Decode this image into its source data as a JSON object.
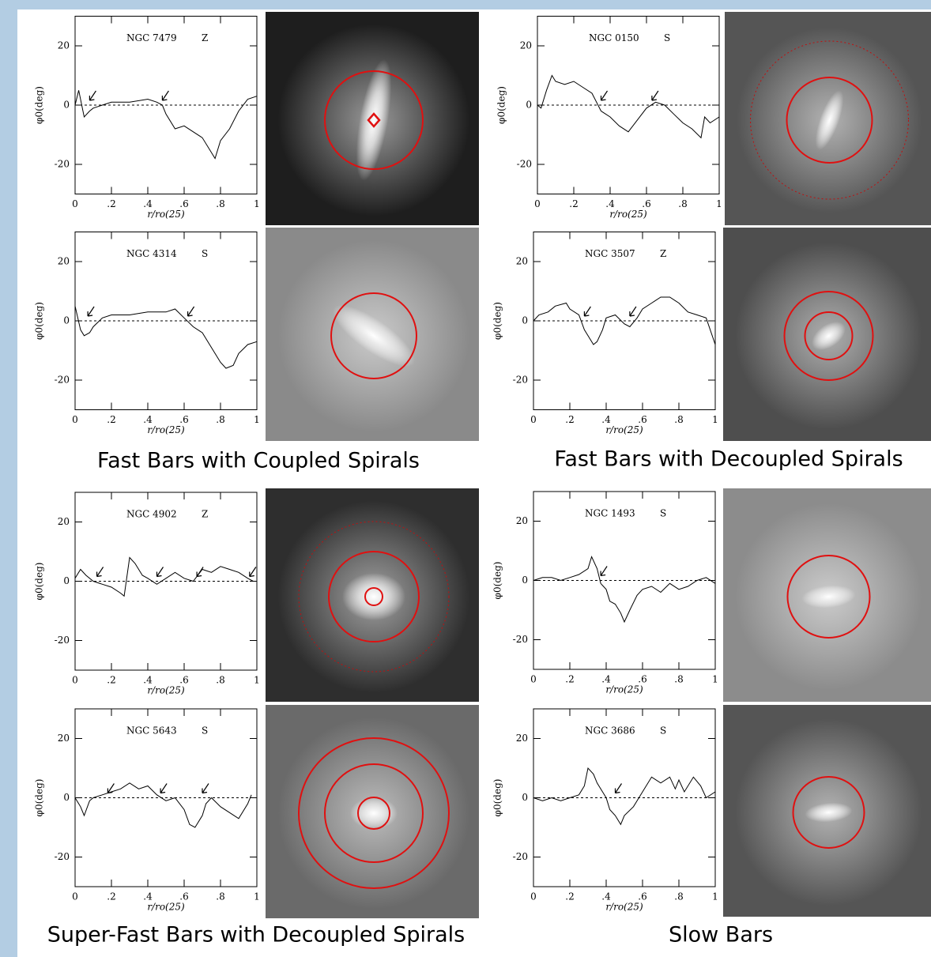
{
  "chart_data": [
    {
      "type": "line",
      "title": "NGC 7479",
      "annotation": "Z",
      "xlabel": "r/ro(25)",
      "ylabel": "φ0(deg)",
      "color": "#000000",
      "x": [
        0,
        0.02,
        0.05,
        0.08,
        0.1,
        0.15,
        0.2,
        0.3,
        0.4,
        0.45,
        0.48,
        0.5,
        0.55,
        0.6,
        0.65,
        0.7,
        0.75,
        0.77,
        0.8,
        0.85,
        0.9,
        0.95,
        1.0
      ],
      "values": [
        0,
        5,
        -4,
        -2,
        -1,
        0,
        1,
        1,
        2,
        1,
        0,
        -3,
        -8,
        -7,
        -9,
        -11,
        -16,
        -18,
        -12,
        -8,
        -2,
        2,
        3
      ],
      "arrows": [
        0.08,
        0.48
      ],
      "xlim": [
        0,
        1
      ],
      "ylim": [
        -30,
        30
      ],
      "xticks": [
        0,
        {
          "value": 0.2,
          "label": ".2"
        },
        {
          "value": 0.4,
          "label": ".4"
        },
        {
          "value": 0.6,
          "label": ".6"
        },
        {
          "value": 0.8,
          "label": ".8"
        },
        1
      ],
      "yticks": [
        -20,
        0,
        20
      ]
    },
    {
      "type": "line",
      "title": "NGC 0150",
      "annotation": "S",
      "xlabel": "r/ro(25)",
      "ylabel": "φ0(deg)",
      "color": "#000000",
      "x": [
        0,
        0.02,
        0.05,
        0.08,
        0.1,
        0.15,
        0.2,
        0.25,
        0.3,
        0.35,
        0.4,
        0.45,
        0.5,
        0.55,
        0.6,
        0.65,
        0.7,
        0.75,
        0.8,
        0.85,
        0.9,
        0.92,
        0.95,
        1.0
      ],
      "values": [
        0,
        -1,
        5,
        10,
        8,
        7,
        8,
        6,
        4,
        -2,
        -4,
        -7,
        -9,
        -5,
        -1,
        1,
        0,
        -3,
        -6,
        -8,
        -11,
        -4,
        -6,
        -4
      ],
      "arrows": [
        0.35,
        0.63
      ],
      "xlim": [
        0,
        1
      ],
      "ylim": [
        -30,
        30
      ],
      "xticks": [
        0,
        {
          "value": 0.2,
          "label": ".2"
        },
        {
          "value": 0.4,
          "label": ".4"
        },
        {
          "value": 0.6,
          "label": ".6"
        },
        {
          "value": 0.8,
          "label": ".8"
        },
        1
      ],
      "yticks": [
        -20,
        0,
        20
      ]
    },
    {
      "type": "line",
      "title": "NGC 4314",
      "annotation": "S",
      "xlabel": "r/ro(25)",
      "ylabel": "φ0(deg)",
      "color": "#000000",
      "x": [
        0,
        0.03,
        0.05,
        0.08,
        0.1,
        0.15,
        0.2,
        0.3,
        0.4,
        0.5,
        0.55,
        0.6,
        0.65,
        0.7,
        0.75,
        0.8,
        0.83,
        0.87,
        0.9,
        0.95,
        1.0
      ],
      "values": [
        5,
        -3,
        -5,
        -4,
        -2,
        1,
        2,
        2,
        3,
        3,
        4,
        1,
        -2,
        -4,
        -9,
        -14,
        -16,
        -15,
        -11,
        -8,
        -7
      ],
      "arrows": [
        0.07,
        0.62
      ],
      "xlim": [
        0,
        1
      ],
      "ylim": [
        -30,
        30
      ],
      "xticks": [
        0,
        {
          "value": 0.2,
          "label": ".2"
        },
        {
          "value": 0.4,
          "label": ".4"
        },
        {
          "value": 0.6,
          "label": ".6"
        },
        {
          "value": 0.8,
          "label": ".8"
        },
        1
      ],
      "yticks": [
        -20,
        0,
        20
      ]
    },
    {
      "type": "line",
      "title": "NGC 3507",
      "annotation": "Z",
      "xlabel": "r/ro(25)",
      "ylabel": "φ0(deg)",
      "color": "#000000",
      "x": [
        0,
        0.03,
        0.08,
        0.12,
        0.18,
        0.2,
        0.25,
        0.28,
        0.3,
        0.33,
        0.35,
        0.38,
        0.4,
        0.45,
        0.5,
        0.53,
        0.57,
        0.6,
        0.65,
        0.7,
        0.75,
        0.8,
        0.85,
        0.9,
        0.95,
        1.0
      ],
      "values": [
        0,
        2,
        3,
        5,
        6,
        4,
        2,
        -3,
        -5,
        -8,
        -7,
        -3,
        1,
        2,
        -1,
        -2,
        1,
        4,
        6,
        8,
        8,
        6,
        3,
        2,
        1,
        -8
      ],
      "arrows": [
        0.28,
        0.53
      ],
      "xlim": [
        0,
        1
      ],
      "ylim": [
        -30,
        30
      ],
      "xticks": [
        0,
        {
          "value": 0.2,
          "label": ".2"
        },
        {
          "value": 0.4,
          "label": ".4"
        },
        {
          "value": 0.6,
          "label": ".6"
        },
        {
          "value": 0.8,
          "label": ".8"
        },
        1
      ],
      "yticks": [
        -20,
        0,
        20
      ]
    },
    {
      "type": "line",
      "title": "NGC 4902",
      "annotation": "Z",
      "xlabel": "r/ro(25)",
      "ylabel": "φ0(deg)",
      "color": "#000000",
      "x": [
        0,
        0.03,
        0.06,
        0.1,
        0.15,
        0.2,
        0.25,
        0.27,
        0.3,
        0.33,
        0.37,
        0.4,
        0.45,
        0.5,
        0.55,
        0.6,
        0.65,
        0.7,
        0.75,
        0.8,
        0.85,
        0.9,
        0.95,
        0.98
      ],
      "values": [
        1,
        4,
        2,
        0,
        -1,
        -2,
        -4,
        -5,
        8,
        6,
        2,
        1,
        -1,
        1,
        3,
        1,
        0,
        4,
        3,
        5,
        4,
        3,
        1,
        0
      ],
      "arrows": [
        0.12,
        0.45,
        0.67,
        0.96
      ],
      "xlim": [
        0,
        1
      ],
      "ylim": [
        -30,
        30
      ],
      "xticks": [
        0,
        {
          "value": 0.2,
          "label": ".2"
        },
        {
          "value": 0.4,
          "label": ".4"
        },
        {
          "value": 0.6,
          "label": ".6"
        },
        {
          "value": 0.8,
          "label": ".8"
        },
        1
      ],
      "yticks": [
        -20,
        0,
        20
      ]
    },
    {
      "type": "line",
      "title": "NGC 1493",
      "annotation": "S",
      "xlabel": "r/ro(25)",
      "ylabel": "φ0(deg)",
      "color": "#000000",
      "x": [
        0,
        0.05,
        0.1,
        0.15,
        0.2,
        0.25,
        0.3,
        0.32,
        0.35,
        0.37,
        0.4,
        0.42,
        0.45,
        0.48,
        0.5,
        0.53,
        0.57,
        0.6,
        0.65,
        0.7,
        0.75,
        0.8,
        0.85,
        0.9,
        0.95,
        1.0
      ],
      "values": [
        0,
        1,
        1,
        0,
        1,
        2,
        4,
        8,
        4,
        -1,
        -3,
        -7,
        -8,
        -11,
        -14,
        -10,
        -5,
        -3,
        -2,
        -4,
        -1,
        -3,
        -2,
        0,
        1,
        -1
      ],
      "arrows": [
        0.37
      ],
      "xlim": [
        0,
        1
      ],
      "ylim": [
        -30,
        30
      ],
      "xticks": [
        0,
        {
          "value": 0.2,
          "label": ".2"
        },
        {
          "value": 0.4,
          "label": ".4"
        },
        {
          "value": 0.6,
          "label": ".6"
        },
        {
          "value": 0.8,
          "label": ".8"
        },
        1
      ],
      "yticks": [
        -20,
        0,
        20
      ]
    },
    {
      "type": "line",
      "title": "NGC 5643",
      "annotation": "S",
      "xlabel": "r/ro(25)",
      "ylabel": "φ0(deg)",
      "color": "#000000",
      "x": [
        0,
        0.03,
        0.05,
        0.08,
        0.1,
        0.15,
        0.2,
        0.25,
        0.3,
        0.35,
        0.4,
        0.45,
        0.5,
        0.55,
        0.6,
        0.63,
        0.66,
        0.7,
        0.72,
        0.75,
        0.8,
        0.85,
        0.9,
        0.95,
        0.97
      ],
      "values": [
        0,
        -3,
        -6,
        -1,
        0,
        1,
        2,
        3,
        5,
        3,
        4,
        1,
        -1,
        0,
        -4,
        -9,
        -10,
        -6,
        -2,
        0,
        -3,
        -5,
        -7,
        -2,
        1
      ],
      "arrows": [
        0.18,
        0.47,
        0.7
      ],
      "xlim": [
        0,
        1
      ],
      "ylim": [
        -30,
        30
      ],
      "xticks": [
        0,
        {
          "value": 0.2,
          "label": ".2"
        },
        {
          "value": 0.4,
          "label": ".4"
        },
        {
          "value": 0.6,
          "label": ".6"
        },
        {
          "value": 0.8,
          "label": ".8"
        },
        1
      ],
      "yticks": [
        -20,
        0,
        20
      ]
    },
    {
      "type": "line",
      "title": "NGC 3686",
      "annotation": "S",
      "xlabel": "r/ro(25)",
      "ylabel": "φ0(deg)",
      "color": "#000000",
      "x": [
        0,
        0.05,
        0.1,
        0.15,
        0.2,
        0.25,
        0.28,
        0.3,
        0.33,
        0.35,
        0.38,
        0.4,
        0.42,
        0.45,
        0.48,
        0.5,
        0.55,
        0.6,
        0.65,
        0.7,
        0.75,
        0.78,
        0.8,
        0.83,
        0.88,
        0.92,
        0.95,
        1.0
      ],
      "values": [
        0,
        -1,
        0,
        -1,
        0,
        1,
        4,
        10,
        8,
        5,
        2,
        0,
        -4,
        -6,
        -9,
        -6,
        -3,
        2,
        7,
        5,
        7,
        3,
        6,
        2,
        7,
        4,
        0,
        2
      ],
      "arrows": [
        0.45
      ],
      "xlim": [
        0,
        1
      ],
      "ylim": [
        -30,
        30
      ],
      "xticks": [
        0,
        {
          "value": 0.2,
          "label": ".2"
        },
        {
          "value": 0.4,
          "label": ".4"
        },
        {
          "value": 0.6,
          "label": ".6"
        },
        {
          "value": 0.8,
          "label": ".8"
        },
        1
      ],
      "yticks": [
        -20,
        0,
        20
      ]
    }
  ],
  "captions": [
    "Fast Bars with Coupled Spirals",
    "Fast Bars with Decoupled Spirals",
    "Super-Fast Bars with Decoupled Spirals",
    "Slow Bars"
  ]
}
